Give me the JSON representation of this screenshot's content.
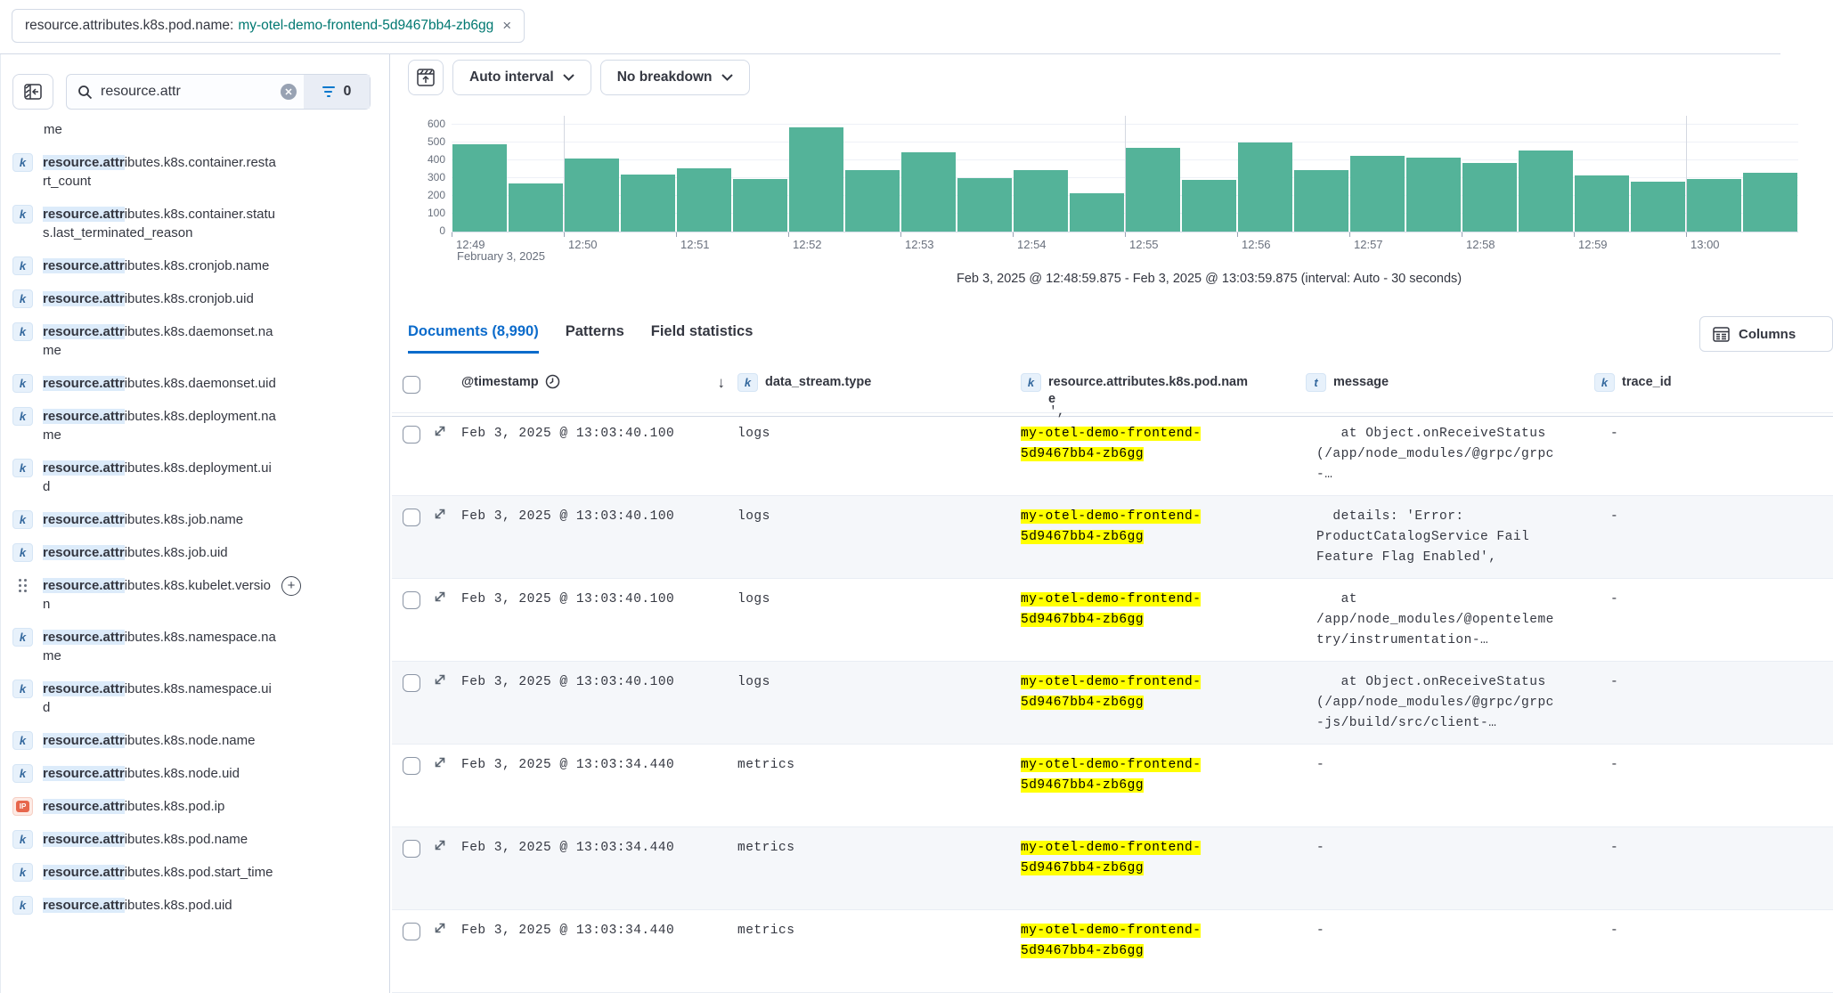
{
  "filter_pill": {
    "field": "resource.attributes.k8s.pod.name:",
    "value": "my-otel-demo-frontend-5d9467bb4-zb6gg",
    "close": "×"
  },
  "sidebar": {
    "search_value": "resource.attr",
    "filter_count": "0",
    "highlight": "resource.attr",
    "clipped_item_text": "me",
    "fields": [
      {
        "token": "k",
        "name": "resource.attributes.k8s.container.restart_count"
      },
      {
        "token": "k",
        "name": "resource.attributes.k8s.container.status.last_terminated_reason"
      },
      {
        "token": "k",
        "name": "resource.attributes.k8s.cronjob.name"
      },
      {
        "token": "k",
        "name": "resource.attributes.k8s.cronjob.uid"
      },
      {
        "token": "k",
        "name": "resource.attributes.k8s.daemonset.name"
      },
      {
        "token": "k",
        "name": "resource.attributes.k8s.daemonset.uid"
      },
      {
        "token": "k",
        "name": "resource.attributes.k8s.deployment.name"
      },
      {
        "token": "k",
        "name": "resource.attributes.k8s.deployment.uid"
      },
      {
        "token": "k",
        "name": "resource.attributes.k8s.job.name"
      },
      {
        "token": "k",
        "name": "resource.attributes.k8s.job.uid"
      },
      {
        "token": "drag",
        "name": "resource.attributes.k8s.kubelet.version",
        "hovered": true,
        "add_label": "+"
      },
      {
        "token": "k",
        "name": "resource.attributes.k8s.namespace.name"
      },
      {
        "token": "k",
        "name": "resource.attributes.k8s.namespace.uid"
      },
      {
        "token": "k",
        "name": "resource.attributes.k8s.node.name"
      },
      {
        "token": "k",
        "name": "resource.attributes.k8s.node.uid"
      },
      {
        "token": "ip",
        "name": "resource.attributes.k8s.pod.ip"
      },
      {
        "token": "k",
        "name": "resource.attributes.k8s.pod.name"
      },
      {
        "token": "k",
        "name": "resource.attributes.k8s.pod.start_time"
      },
      {
        "token": "k",
        "name": "resource.attributes.k8s.pod.uid"
      }
    ]
  },
  "toolbar": {
    "interval_label": "Auto interval",
    "breakdown_label": "No breakdown"
  },
  "chart_data": {
    "type": "bar",
    "x": [
      "12:49:00",
      "12:49:30",
      "12:50:00",
      "12:50:30",
      "12:51:00",
      "12:51:30",
      "12:52:00",
      "12:52:30",
      "12:53:00",
      "12:53:30",
      "12:54:00",
      "12:54:30",
      "12:55:00",
      "12:55:30",
      "12:56:00",
      "12:56:30",
      "12:57:00",
      "12:57:30",
      "12:58:00",
      "12:58:30",
      "12:59:00",
      "12:59:30",
      "13:00:00",
      "13:00:30"
    ],
    "values": [
      490,
      270,
      410,
      320,
      355,
      295,
      585,
      345,
      445,
      300,
      345,
      215,
      470,
      290,
      500,
      345,
      425,
      415,
      385,
      455,
      315,
      280,
      295,
      330
    ],
    "x_tick_labels": [
      "12:49",
      "12:50",
      "12:51",
      "12:52",
      "12:53",
      "12:54",
      "12:55",
      "12:56",
      "12:57",
      "12:58",
      "12:59",
      "13:00"
    ],
    "date_label": "February 3, 2025",
    "yticks": [
      0,
      100,
      200,
      300,
      400,
      500,
      600
    ],
    "ylim": [
      0,
      600
    ],
    "bar_color": "#54b399",
    "grid": true,
    "legend": false,
    "title": "",
    "xlabel": "",
    "ylabel": ""
  },
  "range_caption": "Feb 3, 2025 @ 12:48:59.875 - Feb 3, 2025 @ 13:03:59.875 (interval: Auto - 30 seconds)",
  "tabs": [
    {
      "label": "Documents (8,990)",
      "active": true
    },
    {
      "label": "Patterns",
      "active": false
    },
    {
      "label": "Field statistics",
      "active": false
    }
  ],
  "columns_button_label": "Columns",
  "table": {
    "headers": {
      "timestamp": {
        "label": "@timestamp",
        "sort": "down"
      },
      "type": {
        "token": "k",
        "label": "data_stream.type"
      },
      "pod": {
        "token": "k",
        "label": "resource.attributes.k8s.pod.name"
      },
      "message": {
        "token": "t",
        "label": "message"
      },
      "trace": {
        "token": "k",
        "label": "trace_id"
      }
    },
    "sliver_fragment": "',",
    "rows": [
      {
        "timestamp": "Feb 3, 2025 @ 13:03:40.100",
        "type": "logs",
        "pod_lines": [
          "my-otel-demo-frontend-",
          "5d9467bb4-zb6gg"
        ],
        "message": "   at Object.onReceiveStatus\n(/app/node_modules/@grpc/grpc\n-…",
        "trace": "-"
      },
      {
        "timestamp": "Feb 3, 2025 @ 13:03:40.100",
        "type": "logs",
        "pod_lines": [
          "my-otel-demo-frontend-",
          "5d9467bb4-zb6gg"
        ],
        "message": "  details: 'Error:\nProductCatalogService Fail\nFeature Flag Enabled',",
        "trace": "-"
      },
      {
        "timestamp": "Feb 3, 2025 @ 13:03:40.100",
        "type": "logs",
        "pod_lines": [
          "my-otel-demo-frontend-",
          "5d9467bb4-zb6gg"
        ],
        "message": "   at\n/app/node_modules/@openteleme\ntry/instrumentation-…",
        "trace": "-"
      },
      {
        "timestamp": "Feb 3, 2025 @ 13:03:40.100",
        "type": "logs",
        "pod_lines": [
          "my-otel-demo-frontend-",
          "5d9467bb4-zb6gg"
        ],
        "message": "   at Object.onReceiveStatus\n(/app/node_modules/@grpc/grpc\n-js/build/src/client-…",
        "trace": "-"
      },
      {
        "timestamp": "Feb 3, 2025 @ 13:03:34.440",
        "type": "metrics",
        "pod_lines": [
          "my-otel-demo-frontend-",
          "5d9467bb4-zb6gg"
        ],
        "message": "-",
        "trace": "-"
      },
      {
        "timestamp": "Feb 3, 2025 @ 13:03:34.440",
        "type": "metrics",
        "pod_lines": [
          "my-otel-demo-frontend-",
          "5d9467bb4-zb6gg"
        ],
        "message": "-",
        "trace": "-"
      },
      {
        "timestamp": "Feb 3, 2025 @ 13:03:34.440",
        "type": "metrics",
        "pod_lines": [
          "my-otel-demo-frontend-",
          "5d9467bb4-zb6gg"
        ],
        "message": "-",
        "trace": "-"
      }
    ]
  }
}
